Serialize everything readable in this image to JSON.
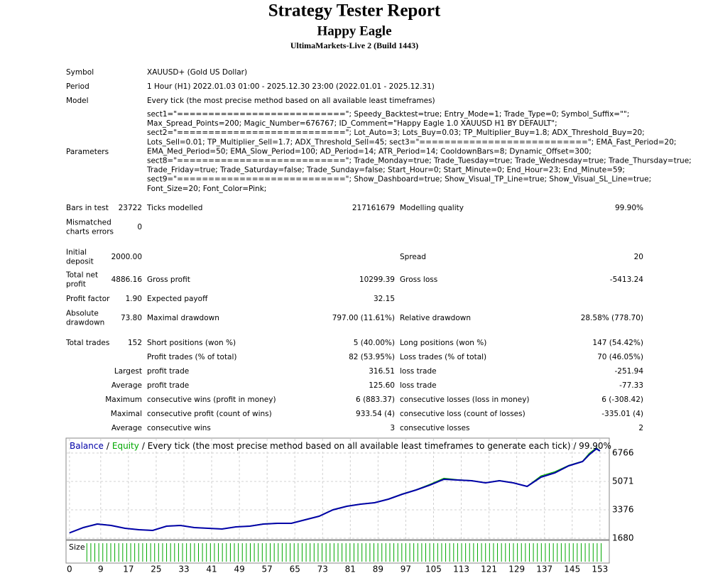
{
  "header": {
    "title": "Strategy Tester Report",
    "subtitle": "Happy Eagle",
    "server": "UltimaMarkets-Live 2 (Build 1443)"
  },
  "info": [
    {
      "label": "Symbol",
      "value": "XAUUSD+ (Gold US Dollar)"
    },
    {
      "label": "Period",
      "value": "1 Hour (H1) 2022.01.03 01:00 - 2025.12.30 23:00 (2022.01.01 - 2025.12.31)"
    },
    {
      "label": "Model",
      "value": "Every tick (the most precise method based on all available least timeframes)"
    }
  ],
  "parameters": {
    "label": "Parameters",
    "lines": [
      "sect1=\"===========================\"; Speedy_Backtest=true; Entry_Mode=1; Trade_Type=0; Symbol_Suffix=\"\";",
      "Max_Spread_Points=200; Magic_Number=676767; ID_Comment=\"Happy Eagle 1.0 XAUUSD H1 BY DEFAULT\";",
      "sect2=\"===========================\"; Lot_Auto=3; Lots_Buy=0.03; TP_Multiplier_Buy=1.8; ADX_Threshold_Buy=20;",
      "Lots_Sell=0.01; TP_Multiplier_Sell=1.7; ADX_Threshold_Sell=45; sect3=\"===========================\"; EMA_Fast_Period=20;",
      "EMA_Med_Period=50; EMA_Slow_Period=100; AD_Period=14; ATR_Period=14; CooldownBars=8; Dynamic_Offset=300;",
      "sect8=\"===========================\"; Trade_Monday=true; Trade_Tuesday=true; Trade_Wednesday=true; Trade_Thursday=true;",
      "Trade_Friday=true; Trade_Saturday=false; Trade_Sunday=false; Start_Hour=0; Start_Minute=0; End_Hour=23; End_Minute=59;",
      "sect9=\"===========================\"; Show_Dashboard=true; Show_Visual_TP_Line=true; Show_Visual_SL_Line=true;",
      "Font_Size=20; Font_Color=Pink;"
    ]
  },
  "stats": [
    {
      "label": "Bars in test",
      "value": "23722",
      "label2": "Ticks modelled",
      "value2": "217161679",
      "label3": "Modelling quality",
      "value3": "99.90%"
    },
    {
      "label": [
        "Mismatched",
        "charts errors"
      ],
      "value": "0"
    },
    {
      "label": [
        "Initial",
        "deposit"
      ],
      "value": "2000.00",
      "label3": "Spread",
      "value3": "20"
    },
    {
      "label": [
        "Total net",
        "profit"
      ],
      "value": "4886.16",
      "label2": "Gross profit",
      "value2": "10299.39",
      "label3": "Gross loss",
      "value3": "-5413.24"
    },
    {
      "label": "Profit factor",
      "value": "1.90",
      "label2": "Expected payoff",
      "value2": "32.15"
    },
    {
      "label": [
        "Absolute",
        "drawdown"
      ],
      "value": "73.80",
      "label2": "Maximal drawdown",
      "value2": "797.00 (11.61%)",
      "label3": "Relative drawdown",
      "value3": "28.58% (778.70)"
    },
    {
      "label": "Total trades",
      "value": "152",
      "label2": "Short positions (won %)",
      "value2": "5 (40.00%)",
      "label3": "Long positions (won %)",
      "value3": "147 (54.42%)"
    },
    {
      "label2": "Profit trades (% of total)",
      "value2": "82 (53.95%)",
      "label3": "Loss trades (% of total)",
      "value3": "70 (46.05%)"
    },
    {
      "value": "Largest",
      "label2": "profit trade",
      "value2": "316.51",
      "label3": "loss trade",
      "value3": "-251.94"
    },
    {
      "value": "Average",
      "label2": "profit trade",
      "value2": "125.60",
      "label3": "loss trade",
      "value3": "-77.33"
    },
    {
      "value": "Maximum",
      "label2": "consecutive wins (profit in money)",
      "value2": "6 (883.37)",
      "label3": "consecutive losses (loss in money)",
      "value3": "6 (-308.42)"
    },
    {
      "value": "Maximal",
      "label2": "consecutive profit (count of wins)",
      "value2": "933.54 (4)",
      "label3": "consecutive loss (count of losses)",
      "value3": "-335.01 (4)"
    },
    {
      "value": "Average",
      "label2": "consecutive wins",
      "value2": "3",
      "label3": "consecutive losses",
      "value3": "2"
    }
  ],
  "chart_data": {
    "type": "line",
    "separator": "/",
    "description": "/ Every tick (the most precise method based on all available least timeframes to generate each tick) / 99.90%",
    "size_label": "Size",
    "x": [
      0,
      4,
      8,
      12,
      16,
      20,
      24,
      28,
      32,
      36,
      40,
      44,
      48,
      52,
      56,
      60,
      64,
      68,
      72,
      76,
      80,
      84,
      88,
      92,
      96,
      100,
      104,
      108,
      112,
      116,
      120,
      124,
      128,
      132,
      136,
      140,
      144,
      148,
      150,
      152,
      153
    ],
    "series": [
      {
        "name": "Balance",
        "color": "#0000a8",
        "values": [
          2000,
          2316,
          2528,
          2443,
          2273,
          2189,
          2146,
          2400,
          2443,
          2316,
          2273,
          2231,
          2358,
          2400,
          2528,
          2570,
          2570,
          2782,
          2994,
          3375,
          3587,
          3714,
          3799,
          4011,
          4307,
          4562,
          4858,
          5197,
          5155,
          5112,
          4985,
          5112,
          4985,
          4773,
          5324,
          5579,
          6003,
          6257,
          6681,
          7019,
          6886
        ]
      },
      {
        "name": "Equity",
        "color": "#00a800",
        "values": [
          2000,
          2330,
          2540,
          2450,
          2280,
          2195,
          2150,
          2410,
          2450,
          2320,
          2280,
          2240,
          2365,
          2410,
          2540,
          2580,
          2580,
          2795,
          3005,
          3390,
          3600,
          3725,
          3810,
          4025,
          4330,
          4580,
          4900,
          5260,
          5170,
          5120,
          4995,
          5125,
          4995,
          4780,
          5400,
          5650,
          6030,
          6280,
          6760,
          7080,
          6886
        ]
      }
    ],
    "xlim": [
      -1,
      155.7
    ],
    "ylim": [
      1680,
      7655
    ],
    "xticks": [
      0,
      9,
      17,
      25,
      33,
      41,
      49,
      57,
      65,
      73,
      81,
      89,
      97,
      105,
      113,
      121,
      129,
      137,
      145,
      153
    ],
    "yticks": [
      1680,
      3376,
      5071,
      6766
    ],
    "grid": true
  }
}
